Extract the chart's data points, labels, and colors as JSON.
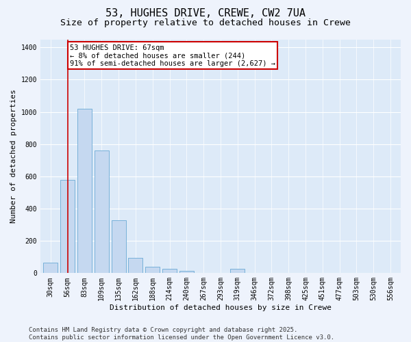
{
  "title_line1": "53, HUGHES DRIVE, CREWE, CW2 7UA",
  "title_line2": "Size of property relative to detached houses in Crewe",
  "xlabel": "Distribution of detached houses by size in Crewe",
  "ylabel": "Number of detached properties",
  "categories": [
    "30sqm",
    "56sqm",
    "83sqm",
    "109sqm",
    "135sqm",
    "162sqm",
    "188sqm",
    "214sqm",
    "240sqm",
    "267sqm",
    "293sqm",
    "319sqm",
    "346sqm",
    "372sqm",
    "398sqm",
    "425sqm",
    "451sqm",
    "477sqm",
    "503sqm",
    "530sqm",
    "556sqm"
  ],
  "values": [
    65,
    580,
    1020,
    760,
    330,
    95,
    40,
    25,
    15,
    0,
    0,
    25,
    0,
    0,
    0,
    0,
    0,
    0,
    0,
    0,
    0
  ],
  "bar_color": "#c5d8f0",
  "bar_edge_color": "#6aaad4",
  "background_color": "#ddeaf8",
  "fig_background_color": "#eef3fc",
  "grid_color": "#ffffff",
  "vline_x_bar": 1,
  "vline_color": "#cc0000",
  "annotation_line1": "53 HUGHES DRIVE: 67sqm",
  "annotation_line2": "← 8% of detached houses are smaller (244)",
  "annotation_line3": "91% of semi-detached houses are larger (2,627) →",
  "annotation_box_color": "#cc0000",
  "ylim": [
    0,
    1450
  ],
  "yticks": [
    0,
    200,
    400,
    600,
    800,
    1000,
    1200,
    1400
  ],
  "footer_text": "Contains HM Land Registry data © Crown copyright and database right 2025.\nContains public sector information licensed under the Open Government Licence v3.0.",
  "title_fontsize": 11,
  "subtitle_fontsize": 9.5,
  "axis_label_fontsize": 8,
  "tick_fontsize": 7,
  "annotation_fontsize": 7.5,
  "footer_fontsize": 6.5
}
